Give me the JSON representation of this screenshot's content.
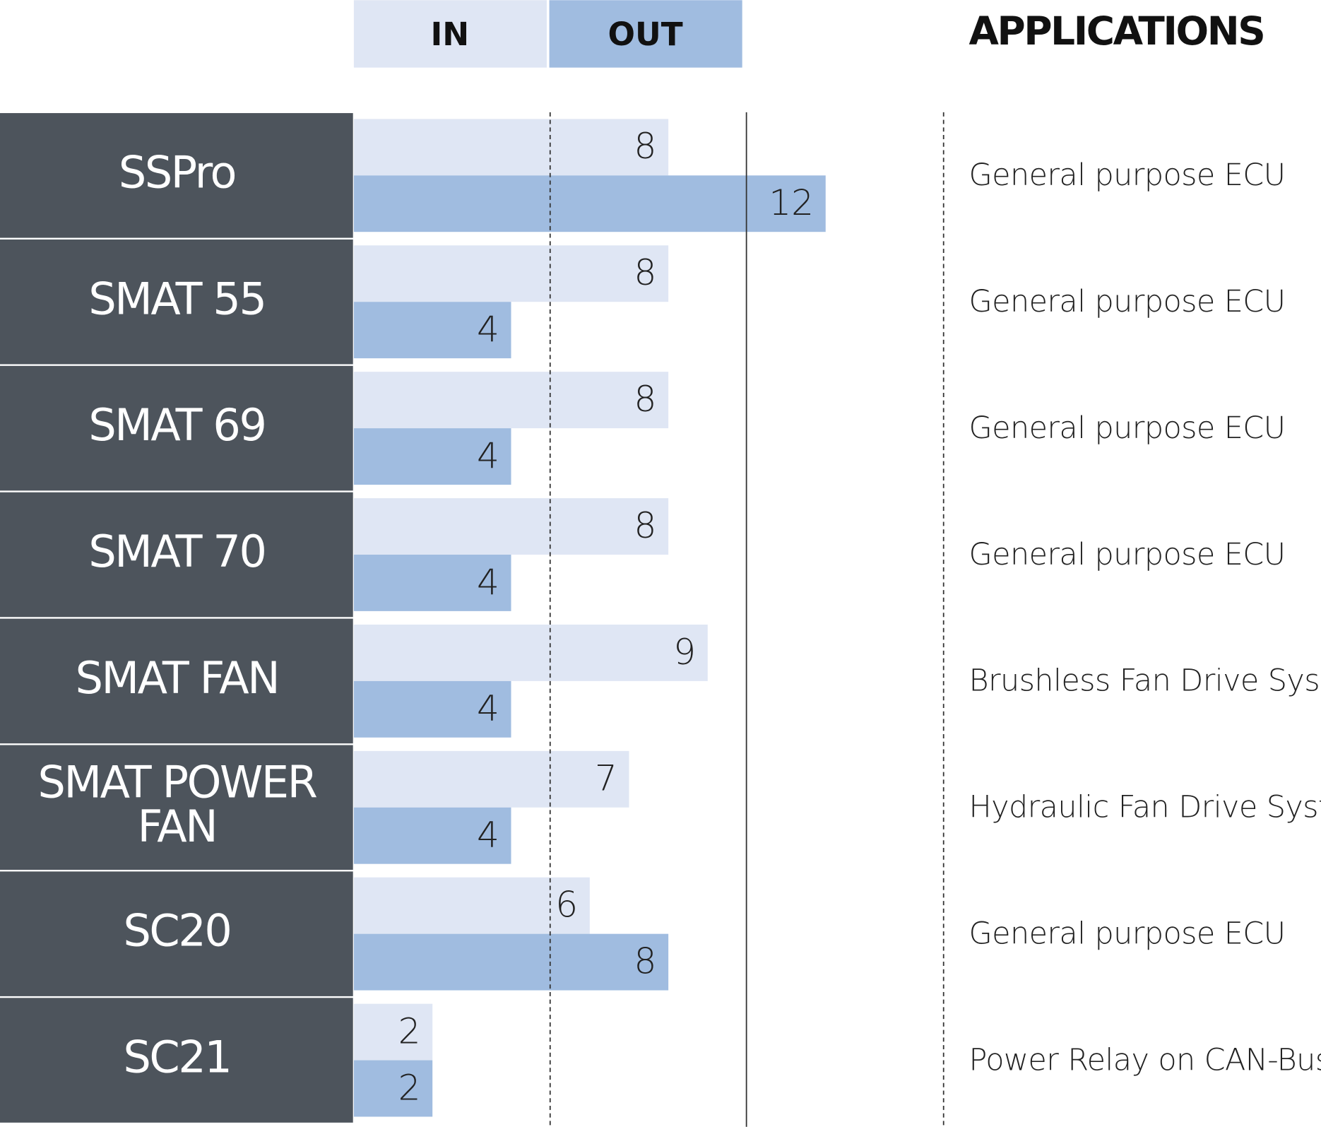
{
  "chart_data": {
    "type": "bar",
    "orientation": "horizontal",
    "categories": [
      "SSPro",
      "SMAT 55",
      "SMAT 69",
      "SMAT 70",
      "SMAT FAN",
      "SMAT POWER FAN",
      "SC20",
      "SC21"
    ],
    "series": [
      {
        "name": "IN",
        "color": "#dfe6f4",
        "values": [
          8,
          8,
          8,
          8,
          9,
          7,
          6,
          2
        ]
      },
      {
        "name": "OUT",
        "color": "#a0bce0",
        "values": [
          12,
          4,
          4,
          4,
          4,
          4,
          8,
          2
        ]
      }
    ],
    "xlim": [
      0,
      15
    ],
    "applications_title": "APPLICATIONS",
    "applications": [
      "General purpose ECU",
      "General purpose ECU",
      "General purpose ECU",
      "General purpose ECU",
      "Brushless Fan Drive System",
      "Hydraulic Fan Drive System",
      "General purpose ECU",
      "Power Relay on CAN-Bus"
    ]
  }
}
